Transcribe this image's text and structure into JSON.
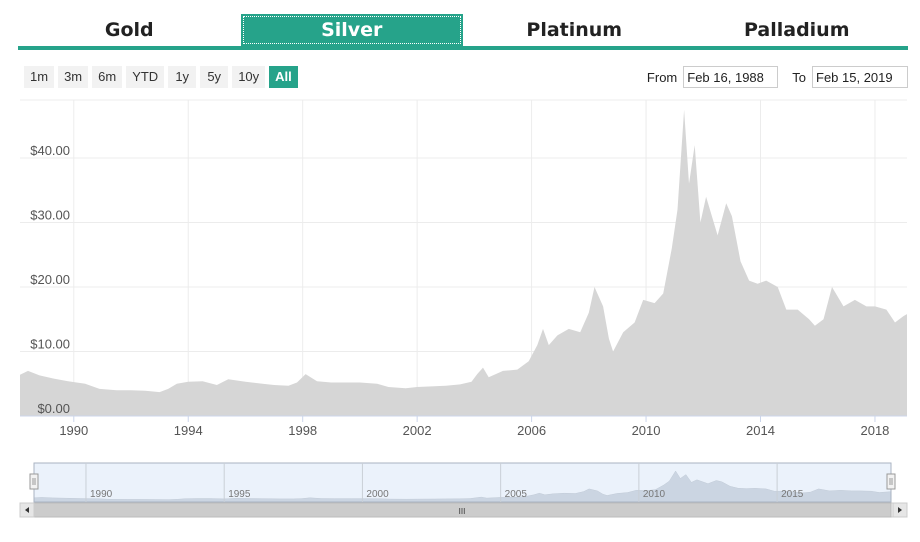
{
  "tabs": [
    {
      "label": "Gold"
    },
    {
      "label": "Silver",
      "active": true
    },
    {
      "label": "Platinum"
    },
    {
      "label": "Palladium"
    }
  ],
  "ranges": [
    "1m",
    "3m",
    "6m",
    "YTD",
    "1y",
    "5y",
    "10y",
    "All"
  ],
  "active_range": "All",
  "date_range": {
    "from_label": "From",
    "from_value": "Feb 16, 1988",
    "to_label": "To",
    "to_value": "Feb 15, 2019"
  },
  "colors": {
    "accent": "#26a38a",
    "area_fill": "#d6d6d6",
    "navigator_mask": "#dbe8f7"
  },
  "chart_data": {
    "type": "area",
    "title": "",
    "xlabel": "",
    "ylabel": "",
    "xlim": [
      1988.12,
      2019.12
    ],
    "ylim": [
      0,
      49
    ],
    "y_ticks": [
      0,
      10,
      20,
      30,
      40
    ],
    "y_tick_labels": [
      "$0.00",
      "$10.00",
      "$20.00",
      "$30.00",
      "$40.00"
    ],
    "x_ticks": [
      1990,
      1994,
      1998,
      2002,
      2006,
      2010,
      2014,
      2018
    ],
    "x_tick_labels": [
      "1990",
      "1994",
      "1998",
      "2002",
      "2006",
      "2010",
      "2014",
      "2018"
    ],
    "grid": true,
    "series": [
      {
        "values": [
          [
            1988.12,
            6.4
          ],
          [
            1988.4,
            7.0
          ],
          [
            1988.8,
            6.3
          ],
          [
            1989.3,
            5.8
          ],
          [
            1989.8,
            5.4
          ],
          [
            1990.4,
            5.0
          ],
          [
            1990.9,
            4.2
          ],
          [
            1991.5,
            4.0
          ],
          [
            1992.0,
            4.0
          ],
          [
            1992.5,
            3.9
          ],
          [
            1993.0,
            3.7
          ],
          [
            1993.3,
            4.2
          ],
          [
            1993.6,
            5.0
          ],
          [
            1994.0,
            5.3
          ],
          [
            1994.5,
            5.4
          ],
          [
            1995.0,
            4.8
          ],
          [
            1995.4,
            5.7
          ],
          [
            1996.0,
            5.3
          ],
          [
            1996.6,
            5.0
          ],
          [
            1997.0,
            4.8
          ],
          [
            1997.5,
            4.7
          ],
          [
            1997.8,
            5.2
          ],
          [
            1998.1,
            6.5
          ],
          [
            1998.5,
            5.4
          ],
          [
            1999.0,
            5.2
          ],
          [
            1999.6,
            5.2
          ],
          [
            2000.0,
            5.2
          ],
          [
            2000.6,
            5.0
          ],
          [
            2001.0,
            4.5
          ],
          [
            2001.6,
            4.3
          ],
          [
            2002.0,
            4.5
          ],
          [
            2002.6,
            4.6
          ],
          [
            2003.0,
            4.7
          ],
          [
            2003.5,
            4.9
          ],
          [
            2003.9,
            5.3
          ],
          [
            2004.1,
            6.5
          ],
          [
            2004.3,
            7.5
          ],
          [
            2004.5,
            6.0
          ],
          [
            2005.0,
            7.0
          ],
          [
            2005.5,
            7.2
          ],
          [
            2005.9,
            8.5
          ],
          [
            2006.2,
            11.0
          ],
          [
            2006.4,
            13.5
          ],
          [
            2006.6,
            11.0
          ],
          [
            2006.9,
            12.5
          ],
          [
            2007.3,
            13.5
          ],
          [
            2007.7,
            13.0
          ],
          [
            2008.0,
            16.0
          ],
          [
            2008.2,
            20.0
          ],
          [
            2008.5,
            17.0
          ],
          [
            2008.7,
            12.0
          ],
          [
            2008.85,
            10.0
          ],
          [
            2009.2,
            13.0
          ],
          [
            2009.6,
            14.5
          ],
          [
            2009.9,
            18.0
          ],
          [
            2010.3,
            17.5
          ],
          [
            2010.6,
            19.0
          ],
          [
            2010.9,
            26.0
          ],
          [
            2011.1,
            32.0
          ],
          [
            2011.33,
            47.5
          ],
          [
            2011.5,
            36.0
          ],
          [
            2011.7,
            42.0
          ],
          [
            2011.9,
            30.0
          ],
          [
            2012.1,
            34.0
          ],
          [
            2012.5,
            28.0
          ],
          [
            2012.8,
            33.0
          ],
          [
            2013.0,
            31.0
          ],
          [
            2013.3,
            24.0
          ],
          [
            2013.6,
            21.0
          ],
          [
            2013.9,
            20.5
          ],
          [
            2014.2,
            21.0
          ],
          [
            2014.6,
            20.0
          ],
          [
            2014.9,
            16.5
          ],
          [
            2015.3,
            16.5
          ],
          [
            2015.7,
            15.0
          ],
          [
            2015.9,
            14.0
          ],
          [
            2016.2,
            15.0
          ],
          [
            2016.5,
            20.0
          ],
          [
            2016.9,
            17.0
          ],
          [
            2017.3,
            18.0
          ],
          [
            2017.7,
            17.0
          ],
          [
            2018.0,
            17.0
          ],
          [
            2018.4,
            16.5
          ],
          [
            2018.7,
            14.5
          ],
          [
            2019.0,
            15.5
          ],
          [
            2019.12,
            15.8
          ]
        ]
      }
    ]
  },
  "navigator": {
    "tick_labels": [
      "1990",
      "1995",
      "2000",
      "2005",
      "2010",
      "2015"
    ],
    "ticks": [
      1990,
      1995,
      2000,
      2005,
      2010,
      2015
    ],
    "scroll_grip": "III"
  }
}
